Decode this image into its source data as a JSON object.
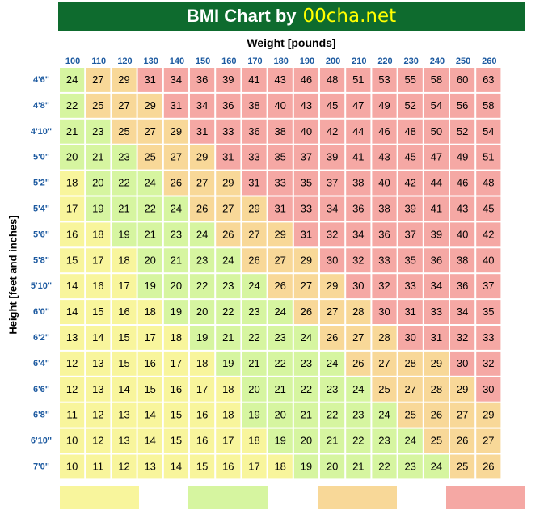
{
  "title": {
    "prefix": "BMI Chart by",
    "site": "00cha.net"
  },
  "colors": {
    "header_bg": "#0e6b2e",
    "header_text": "#ffffff",
    "site_text": "#ffff00",
    "label_blue": "#1d5aa0",
    "underweight": "#f8f59c",
    "normal": "#d6f5a0",
    "overweight": "#f8d898",
    "obese": "#f5a8a4"
  },
  "chart_data": {
    "type": "heatmap",
    "xlabel": "Weight [pounds]",
    "ylabel": "Height [feet and inches]",
    "x": [
      100,
      110,
      120,
      130,
      140,
      150,
      160,
      170,
      180,
      190,
      200,
      210,
      220,
      230,
      240,
      250,
      260
    ],
    "y": [
      "4'6\"",
      "4'8\"",
      "4'10\"",
      "5'0\"",
      "5'2\"",
      "5'4\"",
      "5'6\"",
      "5'8\"",
      "5'10\"",
      "6'0\"",
      "6'2\"",
      "6'4\"",
      "6'6\"",
      "6'8\"",
      "6'10\"",
      "7'0\""
    ],
    "values": [
      [
        24,
        27,
        29,
        31,
        34,
        36,
        39,
        41,
        43,
        46,
        48,
        51,
        53,
        55,
        58,
        60,
        63
      ],
      [
        22,
        25,
        27,
        29,
        31,
        34,
        36,
        38,
        40,
        43,
        45,
        47,
        49,
        52,
        54,
        56,
        58
      ],
      [
        21,
        23,
        25,
        27,
        29,
        31,
        33,
        36,
        38,
        40,
        42,
        44,
        46,
        48,
        50,
        52,
        54
      ],
      [
        20,
        21,
        23,
        25,
        27,
        29,
        31,
        33,
        35,
        37,
        39,
        41,
        43,
        45,
        47,
        49,
        51
      ],
      [
        18,
        20,
        22,
        24,
        26,
        27,
        29,
        31,
        33,
        35,
        37,
        38,
        40,
        42,
        44,
        46,
        48
      ],
      [
        17,
        19,
        21,
        22,
        24,
        26,
        27,
        29,
        31,
        33,
        34,
        36,
        38,
        39,
        41,
        43,
        45
      ],
      [
        16,
        18,
        19,
        21,
        23,
        24,
        26,
        27,
        29,
        31,
        32,
        34,
        36,
        37,
        39,
        40,
        42
      ],
      [
        15,
        17,
        18,
        20,
        21,
        23,
        24,
        26,
        27,
        29,
        30,
        32,
        33,
        35,
        36,
        38,
        40
      ],
      [
        14,
        16,
        17,
        19,
        20,
        22,
        23,
        24,
        26,
        27,
        29,
        30,
        32,
        33,
        34,
        36,
        37
      ],
      [
        14,
        15,
        16,
        18,
        19,
        20,
        22,
        23,
        24,
        26,
        27,
        28,
        30,
        31,
        33,
        34,
        35
      ],
      [
        13,
        14,
        15,
        17,
        18,
        19,
        21,
        22,
        23,
        24,
        26,
        27,
        28,
        30,
        31,
        32,
        33
      ],
      [
        12,
        13,
        15,
        16,
        17,
        18,
        19,
        21,
        22,
        23,
        24,
        26,
        27,
        28,
        29,
        30,
        32
      ],
      [
        12,
        13,
        14,
        15,
        16,
        17,
        18,
        20,
        21,
        22,
        23,
        24,
        25,
        27,
        28,
        29,
        30
      ],
      [
        11,
        12,
        13,
        14,
        15,
        16,
        18,
        19,
        20,
        21,
        22,
        23,
        24,
        25,
        26,
        27,
        29
      ],
      [
        10,
        12,
        13,
        14,
        15,
        16,
        17,
        18,
        19,
        20,
        21,
        22,
        23,
        24,
        25,
        26,
        27
      ],
      [
        10,
        11,
        12,
        13,
        14,
        15,
        16,
        17,
        18,
        19,
        20,
        21,
        22,
        23,
        24,
        25,
        26
      ]
    ],
    "color_bands": [
      {
        "max": 18.5,
        "color": "#f8f59c"
      },
      {
        "max": 25,
        "color": "#d6f5a0"
      },
      {
        "max": 30,
        "color": "#f8d898"
      },
      {
        "max": 999,
        "color": "#f5a8a4"
      }
    ],
    "legend_swatches": [
      "#f8f59c",
      "#d6f5a0",
      "#f8d898",
      "#f5a8a4"
    ],
    "legend_placement": "bottom",
    "grid": true
  }
}
